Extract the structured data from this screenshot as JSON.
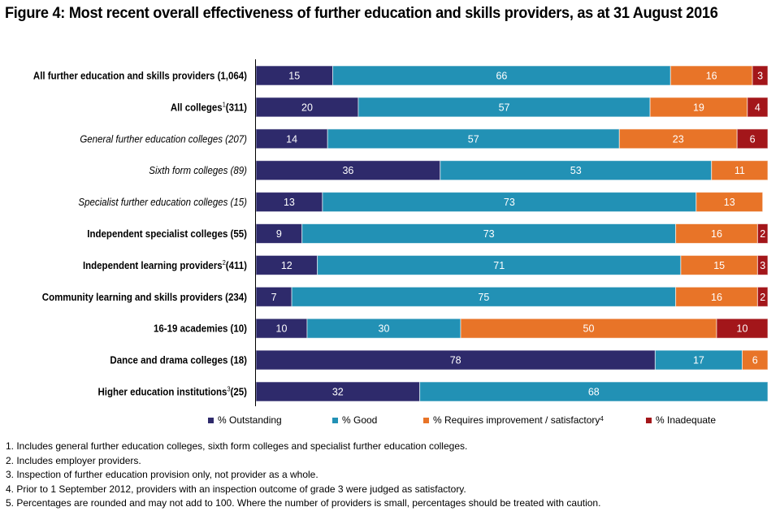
{
  "title": "Figure 4: Most recent overall effectiveness of further education and skills providers, as at 31 August 2016",
  "chart_data": {
    "type": "bar",
    "orientation": "horizontal",
    "stacked": true,
    "title": "Figure 4: Most recent overall effectiveness of further education and skills providers, as at 31 August 2016",
    "xlabel": "",
    "ylabel": "",
    "xlim": [
      0,
      100
    ],
    "grid": false,
    "legend_position": "bottom",
    "categories": [
      {
        "label": "All further education and skills providers (1,064)",
        "sup": "",
        "after": "",
        "bold": true,
        "italic": false
      },
      {
        "label": "All colleges",
        "sup": "1",
        "after": "(311)",
        "bold": true,
        "italic": false
      },
      {
        "label": "General further education colleges (207)",
        "sup": "",
        "after": "",
        "bold": false,
        "italic": true
      },
      {
        "label": "Sixth form colleges (89)",
        "sup": "",
        "after": "",
        "bold": false,
        "italic": true
      },
      {
        "label": "Specialist further education colleges (15)",
        "sup": "",
        "after": "",
        "bold": false,
        "italic": true
      },
      {
        "label": "Independent specialist colleges (55)",
        "sup": "",
        "after": "",
        "bold": true,
        "italic": false
      },
      {
        "label": "Independent learning providers",
        "sup": "2",
        "after": "(411)",
        "bold": true,
        "italic": false
      },
      {
        "label": "Community learning and skills providers (234)",
        "sup": "",
        "after": "",
        "bold": true,
        "italic": false
      },
      {
        "label": "16-19 academies (10)",
        "sup": "",
        "after": "",
        "bold": true,
        "italic": false
      },
      {
        "label": "Dance and drama colleges (18)",
        "sup": "",
        "after": "",
        "bold": true,
        "italic": false
      },
      {
        "label": "Higher education institutions",
        "sup": "3",
        "after": "(25)",
        "bold": true,
        "italic": false
      }
    ],
    "series": [
      {
        "name": "% Outstanding",
        "color": "#2e2a6b",
        "values": [
          15,
          20,
          14,
          36,
          13,
          9,
          12,
          7,
          10,
          78,
          32
        ]
      },
      {
        "name": "% Good",
        "color": "#2291b5",
        "values": [
          66,
          57,
          57,
          53,
          73,
          73,
          71,
          75,
          30,
          17,
          68
        ]
      },
      {
        "name": "% Requires improvement / satisfactory",
        "sup": "4",
        "color": "#e87428",
        "values": [
          16,
          19,
          23,
          11,
          13,
          16,
          15,
          16,
          50,
          6,
          0
        ]
      },
      {
        "name": "% Inadequate",
        "color": "#a3161a",
        "values": [
          3,
          4,
          6,
          0,
          0,
          2,
          3,
          2,
          10,
          0,
          0
        ]
      }
    ]
  },
  "notes": [
    "1. Includes general further education colleges, sixth form colleges and specialist further education colleges.",
    "2. Includes employer providers.",
    "3. Inspection of further education provision only, not provider as a whole.",
    "4. Prior to 1 September 2012, providers with an inspection outcome of grade 3 were judged as satisfactory.",
    "5. Percentages are rounded and may not add to 100. Where the number of providers is small, percentages should be treated with caution."
  ]
}
